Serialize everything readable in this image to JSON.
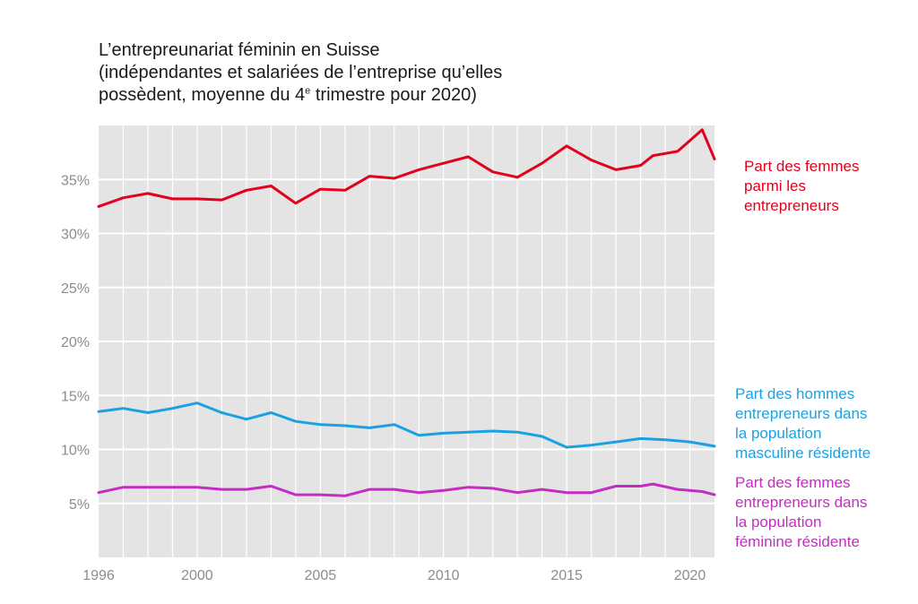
{
  "title": {
    "line1": "L’entrepreunariat féminin en Suisse",
    "line2": "(indépendantes et salariées de l’entreprise qu’elles",
    "line3_before": "possèdent, moyenne du 4",
    "line3_sup": "e",
    "line3_after": " trimestre pour 2020)"
  },
  "chart_data": {
    "type": "line",
    "title": "L’entrepreunariat féminin en Suisse (indépendantes et salariées de l’entreprise qu’elles possèdent, moyenne du 4e trimestre pour 2020)",
    "xlabel": "",
    "ylabel": "",
    "xlim": [
      1996,
      2021
    ],
    "ylim": [
      0,
      40
    ],
    "x_ticks": [
      1996,
      2000,
      2005,
      2010,
      2015,
      2020
    ],
    "x_tick_labels": [
      "1996",
      "2000",
      "2005",
      "2010",
      "2015",
      "2020"
    ],
    "y_ticks": [
      5,
      10,
      15,
      20,
      25,
      30,
      35
    ],
    "y_tick_labels": [
      "5%",
      "10%",
      "15%",
      "20%",
      "25%",
      "30%",
      "35%"
    ],
    "grid": true,
    "series": [
      {
        "name": "Part des femmes parmi les entrepreneurs",
        "label_lines": [
          "Part des femmes",
          "parmi les",
          "entrepreneurs"
        ],
        "color": "#e3001b",
        "x": [
          1996,
          1997,
          1998,
          1999,
          2000,
          2001,
          2002,
          2003,
          2004,
          2005,
          2006,
          2007,
          2008,
          2009,
          2010,
          2011,
          2012,
          2013,
          2014,
          2015,
          2016,
          2017,
          2018,
          2018.5,
          2019.5,
          2020.5,
          2021
        ],
        "values": [
          32.5,
          33.3,
          33.7,
          33.2,
          33.2,
          33.1,
          34.0,
          34.4,
          32.8,
          34.1,
          34.0,
          35.3,
          35.1,
          35.9,
          36.5,
          37.1,
          35.7,
          35.2,
          36.5,
          38.1,
          36.8,
          35.9,
          36.3,
          37.2,
          37.6,
          39.6,
          36.9
        ]
      },
      {
        "name": "Part des hommes entrepreneurs dans la population masculine résidente",
        "label_lines": [
          "Part des hommes",
          "entrepreneurs dans",
          "la population",
          "masculine résidente"
        ],
        "color": "#1ba1e2",
        "x": [
          1996,
          1997,
          1998,
          1999,
          2000,
          2001,
          2002,
          2003,
          2004,
          2005,
          2006,
          2007,
          2008,
          2009,
          2010,
          2011,
          2012,
          2013,
          2014,
          2015,
          2016,
          2017,
          2018,
          2019,
          2020,
          2021
        ],
        "values": [
          13.5,
          13.8,
          13.4,
          13.8,
          14.3,
          13.4,
          12.8,
          13.4,
          12.6,
          12.3,
          12.2,
          12.0,
          12.3,
          11.3,
          11.5,
          11.6,
          11.7,
          11.6,
          11.2,
          10.2,
          10.4,
          10.7,
          11.0,
          10.9,
          10.7,
          10.3
        ]
      },
      {
        "name": "Part des femmes entrepreneurs dans la population féminine résidente",
        "label_lines": [
          "Part des femmes",
          "entrepreneurs dans",
          "la population",
          "féminine résidente"
        ],
        "color": "#c42cc3",
        "x": [
          1996,
          1997,
          1998,
          1999,
          2000,
          2001,
          2002,
          2003,
          2004,
          2005,
          2006,
          2007,
          2008,
          2009,
          2010,
          2011,
          2012,
          2013,
          2014,
          2015,
          2016,
          2017,
          2018,
          2018.5,
          2019.5,
          2020.5,
          2021
        ],
        "values": [
          6.0,
          6.5,
          6.5,
          6.5,
          6.5,
          6.3,
          6.3,
          6.6,
          5.8,
          5.8,
          5.7,
          6.3,
          6.3,
          6.0,
          6.2,
          6.5,
          6.4,
          6.0,
          6.3,
          6.0,
          6.0,
          6.6,
          6.6,
          6.8,
          6.3,
          6.1,
          5.8
        ]
      }
    ]
  },
  "colors": {
    "plot_background": "#e4e4e4",
    "gridline": "#ffffff",
    "tick_text": "#8c8c8c",
    "title_text": "#1a1a1a"
  }
}
